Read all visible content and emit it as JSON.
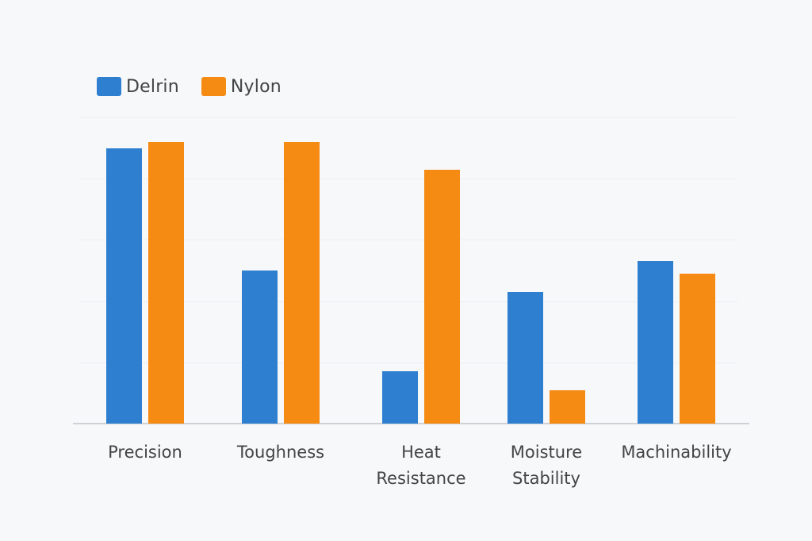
{
  "legend": {
    "items": [
      {
        "label": "Delrin",
        "color": "#2f7fd1"
      },
      {
        "label": "Nylon",
        "color": "#f68b14"
      }
    ]
  },
  "chart_data": {
    "type": "bar",
    "title": "",
    "xlabel": "",
    "ylabel": "",
    "categories": [
      "Precision",
      "Toughness",
      "Heat Resistance",
      "Moisture Stability",
      "Machinability"
    ],
    "category_labels": [
      "Precision",
      "Toughness",
      "Heat\nResistance",
      "Moisture\nStability",
      "Machinability"
    ],
    "series": [
      {
        "name": "Delrin",
        "color": "#2f7fd1",
        "values": [
          90,
          50,
          17,
          43,
          53
        ]
      },
      {
        "name": "Nylon",
        "color": "#f68b14",
        "values": [
          92,
          92,
          83,
          11,
          49
        ]
      }
    ],
    "ylim": [
      0,
      100
    ],
    "gridlines": [
      20,
      40,
      60,
      80,
      100
    ],
    "grid": true,
    "y_tick_labels_visible": false,
    "legend_position": "top-left"
  }
}
